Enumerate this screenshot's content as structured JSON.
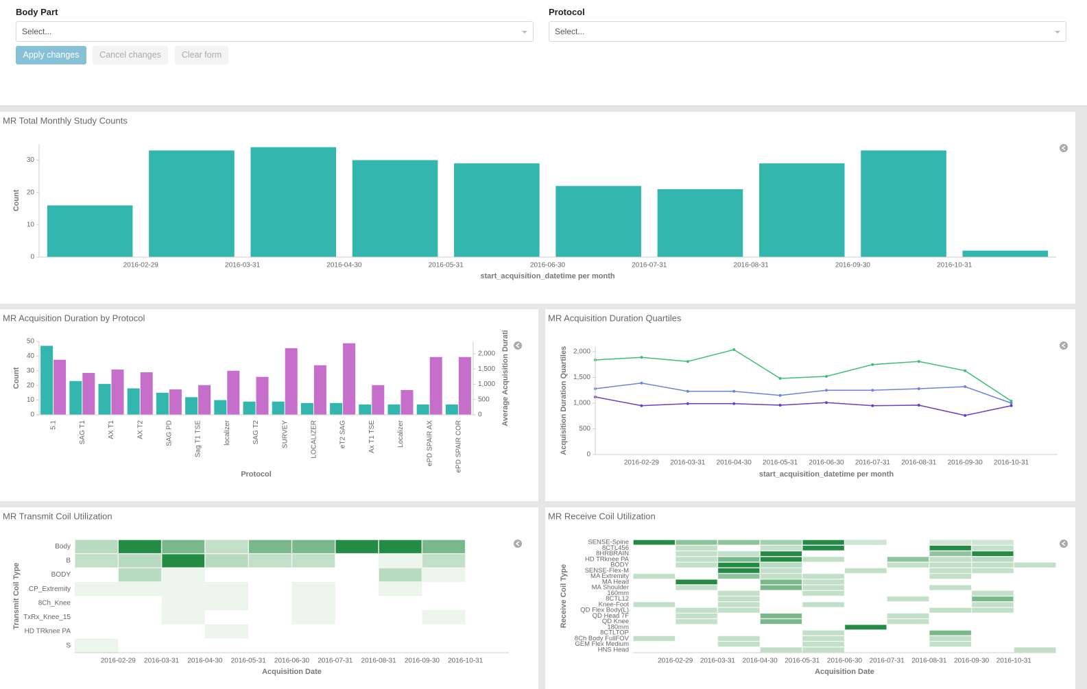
{
  "filters": {
    "fields": [
      {
        "label": "Body Part",
        "placeholder": "Select..."
      },
      {
        "label": "Protocol",
        "placeholder": "Select..."
      }
    ],
    "buttons": [
      "Apply changes",
      "Cancel changes",
      "Clear form"
    ]
  },
  "chart_data": [
    {
      "type": "bar",
      "title": "MR Total Monthly Study Counts",
      "x_label": "start_acquisition_datetime per month",
      "y_label": "Count",
      "xticks": [
        "2016-02-29",
        "2016-03-31",
        "2016-04-30",
        "2016-05-31",
        "2016-06-30",
        "2016-07-31",
        "2016-08-31",
        "2016-09-30",
        "2016-10-31"
      ],
      "values": [
        16,
        33,
        34,
        30,
        29,
        22,
        21,
        29,
        33,
        2
      ],
      "color": "#32b6ae",
      "ylim": [
        0,
        35
      ],
      "yticks": [
        0,
        10,
        20,
        30
      ]
    },
    {
      "type": "bar",
      "title": "MR Acquisition Duration by Protocol",
      "x_label": "Protocol",
      "y_label": "Count",
      "y2_label": "Average Acquisition Durati",
      "categories": [
        "5.1",
        "SAG T1",
        "AX T1",
        "AX T2",
        "SAG PD",
        "Sag T1 TSE",
        "localizer",
        "SAG T2",
        "SURVEY",
        "LOCALIZER",
        "eT2 SAG",
        "Ax T1 TSE",
        "Localizer",
        "ePD SPAIR AX",
        "ePD SPAIR COR"
      ],
      "series": [
        {
          "color": "#32b6ae",
          "values": [
            47,
            23,
            21,
            18,
            15,
            12,
            10,
            9,
            9,
            8,
            8,
            7,
            7,
            7,
            7
          ]
        },
        {
          "color": "#c56fcb",
          "axis": "y2",
          "values": [
            1800,
            1370,
            1480,
            1390,
            830,
            970,
            1440,
            1240,
            2180,
            1620,
            2340,
            970,
            810,
            1890,
            1890
          ]
        }
      ],
      "ylim": [
        0,
        50
      ],
      "yticks": [
        0,
        10,
        20,
        30,
        40,
        50
      ],
      "y2lim": [
        0,
        2400
      ],
      "y2ticks": [
        0,
        500,
        {
          "value": 1000,
          "label": "1,000"
        },
        {
          "value": 1500,
          "label": "1,500"
        },
        {
          "value": 2000,
          "label": "2,000"
        }
      ]
    },
    {
      "type": "line",
      "title": "MR Acquisition Duration Quartiles",
      "x_label": "start_acquisition_datetime per month",
      "y_label": "Acquisition Duration Quartiles",
      "categories": [
        null,
        "2016-02-29",
        "2016-03-31",
        "2016-04-30",
        "2016-05-31",
        "2016-06-30",
        "2016-07-31",
        "2016-08-31",
        "2016-09-30",
        "2016-10-31"
      ],
      "series": [
        {
          "color": "#3cbf6e",
          "values": [
            1840,
            1890,
            1810,
            2040,
            1480,
            1520,
            1750,
            1810,
            1630,
            1040
          ]
        },
        {
          "color": "#6a84dc",
          "values": [
            1280,
            1390,
            1230,
            1230,
            1150,
            1250,
            1250,
            1280,
            1320,
            1000
          ]
        },
        {
          "color": "#6a3cc8",
          "values": [
            1120,
            950,
            990,
            990,
            960,
            1010,
            950,
            960,
            760,
            950
          ]
        }
      ],
      "ylim": [
        0,
        2100
      ],
      "yticks": [
        0,
        500,
        {
          "value": 1000,
          "label": "1,000"
        },
        {
          "value": 1500,
          "label": "1,500"
        },
        {
          "value": 2000,
          "label": "2,000"
        }
      ]
    },
    {
      "type": "heatmap",
      "title": "MR Transmit Coil Utilization",
      "x_label": "Acquisition Date",
      "y_label": "Transmit Coil Type",
      "colors": [
        "#f7fcf5",
        "#238b45"
      ],
      "xticks": [
        "2016-02-29",
        "2016-03-31",
        "2016-04-30",
        "2016-05-31",
        "2016-06-30",
        "2016-07-31",
        "2016-08-31",
        "2016-09-30",
        "2016-10-31"
      ],
      "series": [
        {
          "name": "Body",
          "values": [
            6,
            20,
            12,
            5,
            12,
            12,
            20,
            20,
            12,
            null
          ]
        },
        {
          "name": "B",
          "values": [
            5,
            6,
            20,
            6,
            5,
            5,
            null,
            1,
            5,
            null
          ]
        },
        {
          "name": "BODY",
          "values": [
            null,
            6,
            1,
            null,
            null,
            null,
            null,
            6,
            1,
            null
          ]
        },
        {
          "name": "CP_Extremity",
          "values": [
            1,
            1,
            1,
            1,
            null,
            1,
            null,
            1,
            null,
            null
          ]
        },
        {
          "name": "8Ch_Knee",
          "values": [
            null,
            null,
            1,
            1,
            null,
            1,
            null,
            null,
            null,
            null
          ]
        },
        {
          "name": "TxRx_Knee_15",
          "values": [
            null,
            null,
            1,
            null,
            null,
            1,
            null,
            null,
            1,
            null
          ]
        },
        {
          "name": "HD TRknee PA",
          "values": [
            null,
            null,
            null,
            1,
            null,
            null,
            null,
            null,
            null,
            null
          ]
        },
        {
          "name": "S",
          "values": [
            1,
            null,
            null,
            null,
            null,
            null,
            null,
            null,
            null,
            null
          ]
        }
      ]
    },
    {
      "type": "heatmap",
      "title": "MR Receive Coil Utilization",
      "x_label": "Acquisition Date",
      "y_label": "Receive Coil Type",
      "colors": [
        "#f7fcf5",
        "#238b45"
      ],
      "xticks": [
        "2016-02-29",
        "2016-03-31",
        "2016-04-30",
        "2016-05-31",
        "2016-06-30",
        "2016-07-31",
        "2016-08-31",
        "2016-09-30",
        "2016-10-31"
      ],
      "series": [
        {
          "name": "SENSE-Spine",
          "values": [
            20,
            10,
            10,
            8,
            20,
            4,
            null,
            4,
            4,
            null
          ]
        },
        {
          "name": "8CTL456",
          "values": [
            null,
            5,
            null,
            5,
            20,
            null,
            null,
            20,
            5,
            null
          ]
        },
        {
          "name": "8HRBRAIN",
          "values": [
            null,
            5,
            5,
            20,
            null,
            null,
            null,
            10,
            20,
            null
          ]
        },
        {
          "name": "HD TRknee PA",
          "values": [
            null,
            5,
            12,
            20,
            5,
            null,
            10,
            5,
            6,
            null
          ]
        },
        {
          "name": "BODY",
          "values": [
            null,
            5,
            20,
            6,
            null,
            null,
            5,
            5,
            5,
            5
          ]
        },
        {
          "name": "SENSE-Flex-M",
          "values": [
            null,
            null,
            20,
            5,
            null,
            5,
            null,
            5,
            5,
            null
          ]
        },
        {
          "name": "MA Extremity",
          "values": [
            5,
            null,
            10,
            5,
            5,
            null,
            null,
            5,
            null,
            null
          ]
        },
        {
          "name": "MA Head",
          "values": [
            null,
            20,
            null,
            12,
            5,
            null,
            null,
            null,
            null,
            null
          ]
        },
        {
          "name": "MA Shoulder",
          "values": [
            null,
            5,
            null,
            12,
            5,
            null,
            null,
            5,
            null,
            null
          ]
        },
        {
          "name": "160mm",
          "values": [
            null,
            null,
            5,
            null,
            5,
            null,
            null,
            null,
            5,
            null
          ]
        },
        {
          "name": "8CTL12",
          "values": [
            null,
            null,
            5,
            null,
            null,
            null,
            5,
            null,
            12,
            null
          ]
        },
        {
          "name": "Knee-Foot",
          "values": [
            5,
            null,
            5,
            null,
            5,
            null,
            null,
            null,
            5,
            null
          ]
        },
        {
          "name": "QD Flex Body(L)",
          "values": [
            null,
            5,
            5,
            null,
            null,
            null,
            null,
            5,
            5,
            null
          ]
        },
        {
          "name": "QD Head 7F",
          "values": [
            null,
            5,
            null,
            12,
            null,
            null,
            5,
            null,
            null,
            null
          ]
        },
        {
          "name": "QD Knee",
          "values": [
            null,
            5,
            null,
            12,
            null,
            null,
            5,
            null,
            null,
            null
          ]
        },
        {
          "name": "180mm",
          "values": [
            null,
            null,
            null,
            null,
            null,
            20,
            null,
            null,
            null,
            null
          ]
        },
        {
          "name": "8CTLTOP",
          "values": [
            null,
            null,
            null,
            null,
            5,
            null,
            null,
            12,
            null,
            null
          ]
        },
        {
          "name": "8Ch Body FullFOV",
          "values": [
            5,
            null,
            5,
            null,
            5,
            null,
            null,
            5,
            null,
            null
          ]
        },
        {
          "name": "GEM Flex Medium",
          "values": [
            null,
            null,
            5,
            null,
            5,
            null,
            null,
            5,
            null,
            null
          ]
        },
        {
          "name": "HNS Head",
          "values": [
            null,
            null,
            null,
            5,
            5,
            null,
            null,
            null,
            null,
            5
          ]
        }
      ]
    }
  ]
}
